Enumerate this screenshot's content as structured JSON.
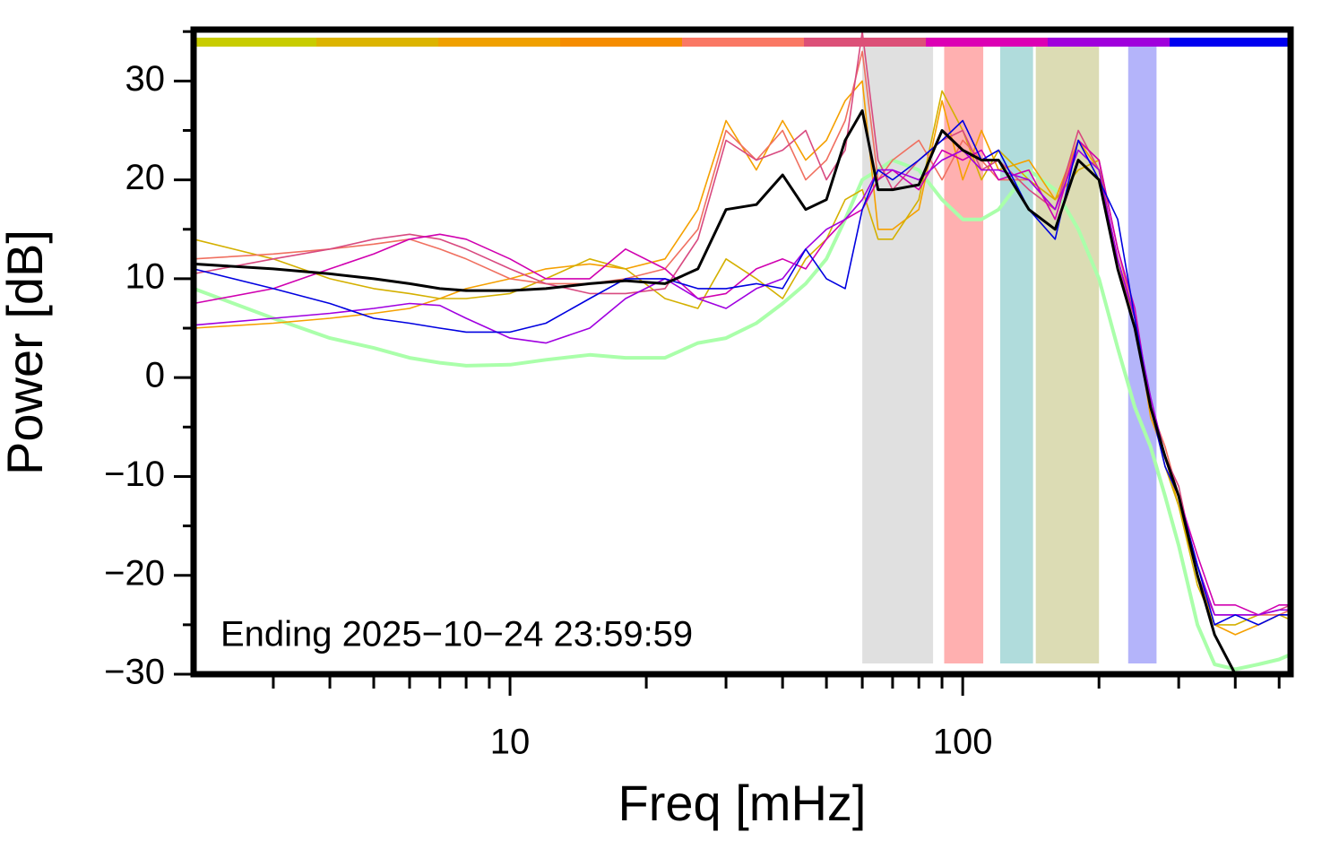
{
  "chart_data": {
    "type": "line",
    "xlabel": "Freq [mHz]",
    "ylabel": "Power [dB]",
    "annotation": "Ending 2025−10−24 23:59:59",
    "xscale": "log",
    "xlim": [
      2,
      530
    ],
    "xticks": [
      10,
      100
    ],
    "xminor": [
      3,
      4,
      5,
      6,
      7,
      8,
      9,
      20,
      30,
      40,
      50,
      60,
      70,
      80,
      90,
      200,
      300,
      400,
      500
    ],
    "ylim": [
      -30,
      35.2
    ],
    "yticks": [
      {
        "value": -30,
        "label": "−30"
      },
      {
        "value": -20,
        "label": "−20"
      },
      {
        "value": -10,
        "label": "−10"
      },
      0,
      10,
      20,
      30
    ],
    "yminor": [
      -25,
      -15,
      -5,
      5,
      15,
      25,
      35
    ],
    "bands": [
      {
        "x": [
          60,
          86
        ],
        "color": "#e0e0e0"
      },
      {
        "x": [
          91,
          111
        ],
        "color": "#ffb0b0"
      },
      {
        "x": [
          121,
          143
        ],
        "color": "#b0dcdc"
      },
      {
        "x": [
          145,
          200
        ],
        "color": "#dcdcb4"
      },
      {
        "x": [
          232,
          268
        ],
        "color": "#b4b4fa"
      }
    ],
    "x": [
      2,
      3,
      4,
      5,
      6,
      7,
      8,
      10,
      12,
      15,
      18,
      22,
      26,
      30,
      35,
      40,
      45,
      50,
      55,
      60,
      65,
      70,
      80,
      90,
      100,
      110,
      120,
      140,
      160,
      180,
      200,
      220,
      240,
      260,
      280,
      300,
      330,
      360,
      400,
      450,
      500,
      530
    ],
    "series": [
      {
        "color": "#aaffaa",
        "width": 4,
        "values": [
          9,
          6,
          4,
          3,
          2,
          1.5,
          1.2,
          1.3,
          1.8,
          2.3,
          2,
          2,
          3.5,
          4,
          5.5,
          7.5,
          9.5,
          12,
          16,
          20,
          21,
          22,
          21,
          18,
          16,
          16,
          17,
          21,
          19,
          15,
          10,
          3,
          -3,
          -7,
          -12,
          -17,
          -25,
          -29,
          -29.5,
          -29,
          -28.5,
          -28
        ]
      },
      {
        "color": "#f5a000",
        "width": 1.6,
        "values": [
          5,
          5.5,
          6,
          6.5,
          7,
          8,
          9,
          10,
          11,
          11.5,
          11,
          12,
          17,
          26,
          21,
          26,
          22,
          24,
          28,
          30,
          15,
          15,
          17,
          28,
          20,
          25,
          21,
          22,
          18,
          24,
          21,
          12,
          6,
          -4,
          -8,
          -13,
          -20,
          -25,
          -26,
          -25,
          -24,
          -24
        ]
      },
      {
        "color": "#d4b000",
        "width": 1.6,
        "values": [
          14,
          12,
          10,
          9,
          8.5,
          8,
          8,
          8.5,
          10,
          12,
          11,
          8,
          7,
          12,
          10,
          8,
          12,
          14,
          18,
          19,
          14,
          14,
          18,
          29,
          25,
          20,
          23,
          20,
          18,
          21,
          22,
          11,
          6,
          -3,
          -9,
          -13,
          -21,
          -25,
          -25,
          -24,
          -24,
          -24.5
        ]
      },
      {
        "color": "#f07060",
        "width": 1.6,
        "values": [
          12,
          12.5,
          13,
          13.5,
          14,
          13,
          12,
          10,
          9.5,
          9.5,
          10,
          11,
          15,
          25,
          22,
          25,
          20,
          22,
          26,
          33,
          20,
          22,
          24,
          20,
          24,
          22,
          20,
          20,
          17,
          24,
          22,
          13,
          6,
          -3,
          -7,
          -12,
          -19,
          -24,
          -24,
          -24,
          -24,
          -23.5
        ]
      },
      {
        "color": "#d84a80",
        "width": 1.6,
        "values": [
          10.5,
          12,
          13,
          14,
          14.5,
          14,
          13,
          11,
          9.5,
          8.5,
          8.5,
          9,
          14,
          24,
          22,
          23,
          25,
          20,
          23,
          35,
          22,
          19,
          22,
          24,
          25,
          21,
          22,
          19,
          17,
          25,
          21,
          12,
          5,
          -2,
          -8,
          -11,
          -20,
          -24,
          -24,
          -24,
          -23.5,
          -23
        ]
      },
      {
        "color": "#d000b0",
        "width": 1.6,
        "values": [
          7.5,
          9,
          11,
          12.5,
          14,
          14.5,
          14,
          12,
          10,
          10,
          13,
          11,
          8,
          8.5,
          11,
          12,
          11,
          14,
          16,
          17,
          20,
          21,
          19,
          23,
          22,
          23,
          20,
          21,
          16,
          24,
          22,
          13,
          7,
          -3,
          -8,
          -12,
          -18,
          -23,
          -23,
          -24,
          -23,
          -23
        ]
      },
      {
        "color": "#a000e0",
        "width": 1.6,
        "values": [
          5.3,
          6,
          6.5,
          7,
          7.5,
          7.3,
          6,
          4,
          3.5,
          5,
          8,
          10,
          8,
          7,
          9,
          10,
          13,
          15,
          16,
          18,
          21,
          21,
          20,
          22,
          23,
          21,
          21,
          20,
          17,
          23,
          21,
          12,
          6,
          -2,
          -8,
          -12,
          -19,
          -24,
          -24,
          -24,
          -23.5,
          -23.5
        ]
      },
      {
        "color": "#0000e0",
        "width": 1.6,
        "values": [
          11,
          9,
          7.5,
          6,
          5.5,
          5,
          4.6,
          4.6,
          5.5,
          8,
          10,
          10,
          9,
          9,
          9.5,
          9,
          13,
          10,
          9,
          17,
          21,
          20,
          22,
          24,
          26,
          22,
          23,
          17,
          14,
          24,
          20,
          16,
          6,
          -3,
          -9,
          -12,
          -19,
          -25,
          -24,
          -25,
          -24,
          -24
        ]
      },
      {
        "color": "#000000",
        "width": 3,
        "values": [
          11.5,
          11,
          10.5,
          10,
          9.5,
          9,
          8.8,
          8.8,
          9,
          9.5,
          9.8,
          9.5,
          11,
          17,
          17.5,
          20.5,
          17,
          18,
          24,
          27,
          19,
          19,
          19.5,
          25,
          23,
          22,
          22,
          17,
          15,
          22,
          20,
          11,
          5,
          -3,
          -8,
          -12,
          -20,
          -26,
          -30,
          -30,
          -30,
          -30
        ]
      }
    ]
  }
}
